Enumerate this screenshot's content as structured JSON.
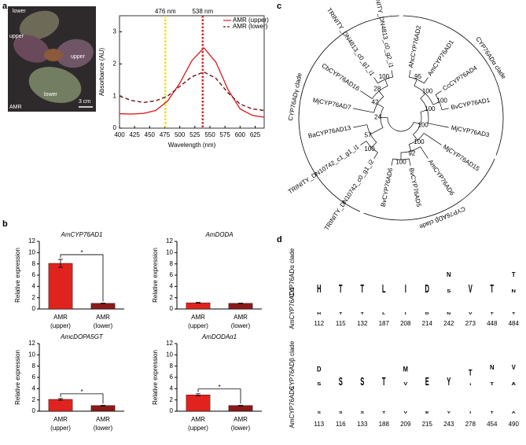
{
  "panel_labels": [
    "a",
    "b",
    "c",
    "d"
  ],
  "photo": {
    "labels": [
      "lower",
      "upper",
      "upper",
      "lower"
    ],
    "caption": "AMR",
    "scale_bar": "3 cm"
  },
  "chart_data": [
    {
      "type": "line",
      "x_label": "Wavelength (nm)",
      "y_label": "Absorbance (AU)",
      "x": [
        400,
        420,
        440,
        460,
        480,
        500,
        520,
        540,
        560,
        580,
        600,
        620,
        640
      ],
      "series": [
        {
          "name": "AMR (upper)",
          "color": "#d7262b",
          "dashed": false,
          "values": [
            0.45,
            0.44,
            0.46,
            0.55,
            0.85,
            1.4,
            2.1,
            2.5,
            2.05,
            1.2,
            0.6,
            0.4,
            0.34
          ]
        },
        {
          "name": "AMR (lower)",
          "color": "#6e1a1a",
          "dashed": true,
          "values": [
            1.0,
            0.86,
            0.8,
            0.85,
            1.0,
            1.3,
            1.6,
            1.75,
            1.55,
            1.1,
            0.75,
            0.6,
            0.55
          ]
        }
      ],
      "markers": [
        {
          "x": 476,
          "label": "476 nm",
          "color": "#f2dc1a"
        },
        {
          "x": 538,
          "label": "538 nm",
          "color": "#d7262b"
        }
      ],
      "xlim": [
        400,
        640
      ],
      "ylim": [
        0,
        3.5
      ],
      "xticks": [
        400,
        425,
        450,
        475,
        500,
        525,
        550,
        575,
        600,
        625
      ],
      "yticks": [
        0,
        1,
        2,
        3
      ]
    },
    {
      "type": "bar",
      "title": "AmCYP76AD1",
      "y_label": "Relative expression",
      "categories": [
        "AMR (upper)",
        "AMR (lower)"
      ],
      "values": [
        8.1,
        1.0
      ],
      "errors": [
        0.7,
        0.05
      ],
      "colors": [
        "#e0231e",
        "#8b1a1a"
      ],
      "significance": "*",
      "ylim": [
        0,
        12
      ],
      "yticks": [
        0,
        2,
        4,
        6,
        8,
        10,
        12
      ]
    },
    {
      "type": "bar",
      "title": "AmDODA",
      "y_label": "Relative expression",
      "categories": [
        "AMR (upper)",
        "AMR (lower)"
      ],
      "values": [
        1.1,
        1.0
      ],
      "errors": [
        0.07,
        0.05
      ],
      "colors": [
        "#e0231e",
        "#8b1a1a"
      ],
      "ylim": [
        0,
        12
      ],
      "yticks": [
        0,
        2,
        4,
        6,
        8,
        10,
        12
      ]
    },
    {
      "type": "bar",
      "title": "AmcDOPA5GT",
      "y_label": "Relative expression",
      "categories": [
        "AMR (upper)",
        "AMR (lower)"
      ],
      "values": [
        2.1,
        1.0
      ],
      "errors": [
        0.15,
        0.05
      ],
      "colors": [
        "#e0231e",
        "#8b1a1a"
      ],
      "significance": "*",
      "ylim": [
        0,
        12
      ],
      "yticks": [
        0,
        2,
        4,
        6,
        8,
        10,
        12
      ]
    },
    {
      "type": "bar",
      "title": "AmDODAα1",
      "y_label": "Relative expression",
      "categories": [
        "AMR (upper)",
        "AMR (lower)"
      ],
      "values": [
        2.9,
        1.0
      ],
      "errors": [
        0.2,
        0.05
      ],
      "colors": [
        "#e0231e",
        "#8b1a1a"
      ],
      "significance": "*",
      "ylim": [
        0,
        12
      ],
      "yticks": [
        0,
        2,
        4,
        6,
        8,
        10,
        12
      ]
    }
  ],
  "tree": {
    "highlight_color": "#e0231e",
    "children": [
      {
        "support": 100,
        "children": [
          {
            "support": 100,
            "clade": "CYP76ADα clade",
            "children": [
              {
                "support": 100,
                "children": [
                  {
                    "support": 95,
                    "children": [
                      {
                        "label": "AhcCYP76AD2"
                      },
                      {
                        "label": "AmCYP76AD1",
                        "highlighted": true
                      }
                    ]
                  },
                  {
                    "support": 100,
                    "children": [
                      {
                        "label": "CcCYP76AD4"
                      },
                      {
                        "label": "BvCYP76AD1"
                      }
                    ]
                  }
                ]
              },
              {
                "label": "MjCYP76AD3"
              }
            ]
          },
          {
            "support": 100,
            "clade": "CYP76ADβ clade",
            "children": [
              {
                "label": "MjCYP76AD15"
              },
              {
                "support": 92,
                "children": [
                  {
                    "label": "AmCYP76AD6",
                    "highlighted": true
                  },
                  {
                    "support": 100,
                    "children": [
                      {
                        "label": "BvCYP76AD5"
                      },
                      {
                        "label": "BvCYP76AD6"
                      }
                    ]
                  }
                ]
              }
            ]
          }
        ]
      },
      {
        "support": 24,
        "clade": "CYP76ADγ clade",
        "children": [
          {
            "support": 57,
            "children": [
              {
                "support": 100,
                "children": [
                  {
                    "label": "TRINITY_DN10742_c0_g1_i2",
                    "highlighted": true
                  },
                  {
                    "label": "TRINITY_DN10742_c1_g1_i1",
                    "highlighted": true
                  }
                ]
              },
              {
                "label": "BaCYP76AD13"
              }
            ]
          },
          {
            "support": 42,
            "children": [
              {
                "label": "MjCYP76AD7"
              },
              {
                "support": 28,
                "children": [
                  {
                    "label": "CbCYP76AD16"
                  },
                  {
                    "support": 100,
                    "children": [
                      {
                        "label": "TRINITY_DN4813_c0_g1_i1",
                        "highlighted": true
                      },
                      {
                        "label": "TRINITY_DN4813_c0_g2_i1",
                        "highlighted": true
                      }
                    ]
                  }
                ]
              }
            ]
          }
        ]
      }
    ]
  },
  "logos": {
    "letter_colors": {
      "H": "#2a4fa8",
      "T": "#3cb043",
      "S": "#3cb043",
      "Y": "#3cb043",
      "L": "#000000",
      "I": "#000000",
      "V": "#000000",
      "M": "#000000",
      "A": "#000000",
      "D": "#d7262b",
      "E": "#d7262b",
      "N": "#a02ca0"
    },
    "blocks": [
      {
        "logo_label": "CYP76ADα clade",
        "sequence_label": "AmCYP76AD1",
        "columns": [
          {
            "stack": [
              {
                "letter": "H",
                "weight": 1
              }
            ],
            "residue": "H",
            "position": 112
          },
          {
            "stack": [
              {
                "letter": "T",
                "weight": 1
              }
            ],
            "residue": "T",
            "position": 115
          },
          {
            "stack": [
              {
                "letter": "T",
                "weight": 1
              }
            ],
            "residue": "T",
            "position": 132
          },
          {
            "stack": [
              {
                "letter": "L",
                "weight": 1
              }
            ],
            "residue": "L",
            "position": 187
          },
          {
            "stack": [
              {
                "letter": "I",
                "weight": 1
              }
            ],
            "residue": "I",
            "position": 208
          },
          {
            "stack": [
              {
                "letter": "D",
                "weight": 1
              }
            ],
            "residue": "D",
            "position": 214
          },
          {
            "stack": [
              {
                "letter": "N",
                "weight": 0.6
              },
              {
                "letter": "S",
                "weight": 0.4
              }
            ],
            "residue": "N",
            "position": 242
          },
          {
            "stack": [
              {
                "letter": "V",
                "weight": 1
              }
            ],
            "residue": "V",
            "position": 273
          },
          {
            "stack": [
              {
                "letter": "T",
                "weight": 1
              }
            ],
            "residue": "T",
            "position": 448
          },
          {
            "stack": [
              {
                "letter": "T",
                "weight": 0.6
              },
              {
                "letter": "N",
                "weight": 0.4
              }
            ],
            "residue": "T",
            "position": 484
          }
        ]
      },
      {
        "logo_label": "CYP76ADβ clade",
        "sequence_label": "AmCYP76AD6",
        "columns": [
          {
            "stack": [
              {
                "letter": "D",
                "weight": 0.65
              },
              {
                "letter": "S",
                "weight": 0.35
              }
            ],
            "residue": "S",
            "position": 113
          },
          {
            "stack": [
              {
                "letter": "S",
                "weight": 1
              }
            ],
            "residue": "S",
            "position": 116
          },
          {
            "stack": [
              {
                "letter": "S",
                "weight": 1
              }
            ],
            "residue": "S",
            "position": 133
          },
          {
            "stack": [
              {
                "letter": "T",
                "weight": 1
              }
            ],
            "residue": "T",
            "position": 188
          },
          {
            "stack": [
              {
                "letter": "M",
                "weight": 0.65
              },
              {
                "letter": "V",
                "weight": 0.35
              }
            ],
            "residue": "V",
            "position": 209
          },
          {
            "stack": [
              {
                "letter": "E",
                "weight": 1
              }
            ],
            "residue": "E",
            "position": 215
          },
          {
            "stack": [
              {
                "letter": "Y",
                "weight": 1
              }
            ],
            "residue": "Y",
            "position": 243
          },
          {
            "stack": [
              {
                "letter": "T",
                "weight": 0.75
              },
              {
                "letter": "I",
                "weight": 0.25
              }
            ],
            "residue": "I",
            "position": 278
          },
          {
            "stack": [
              {
                "letter": "N",
                "weight": 0.6
              },
              {
                "letter": "T",
                "weight": 0.4
              }
            ],
            "residue": "T",
            "position": 454
          },
          {
            "stack": [
              {
                "letter": "V",
                "weight": 0.6
              },
              {
                "letter": "A",
                "weight": 0.4
              }
            ],
            "residue": "A",
            "position": 490
          }
        ]
      }
    ]
  }
}
